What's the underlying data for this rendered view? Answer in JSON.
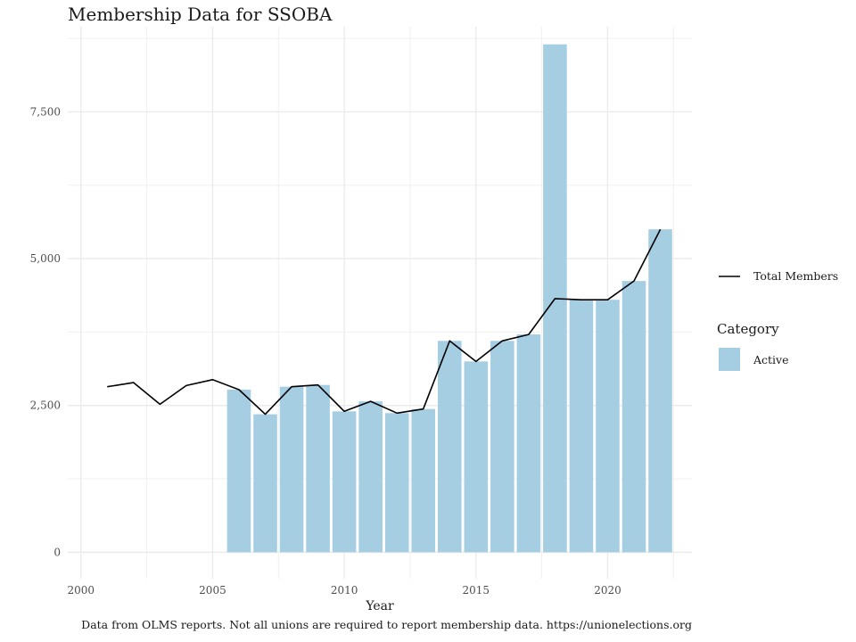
{
  "chart_data": {
    "type": "bar",
    "title": "Membership Data for SSOBA",
    "xlabel": "Year",
    "ylabel": "",
    "caption": "Data from OLMS reports. Not all unions are required to report membership data. https://unionelections.org",
    "xlim": [
      1999.5,
      2023.2
    ],
    "ylim": [
      -450,
      8950
    ],
    "x_ticks": [
      2000,
      2005,
      2010,
      2015,
      2020
    ],
    "x_tick_labels": [
      "2000",
      "2005",
      "2010",
      "2015",
      "2020"
    ],
    "y_ticks": [
      0,
      2500,
      5000,
      7500
    ],
    "y_tick_labels": [
      "0",
      "2,500",
      "5,000",
      "7,500"
    ],
    "grid": true,
    "bar_series": {
      "name": "Active",
      "color": "#a6cee3",
      "x": [
        2006,
        2007,
        2008,
        2009,
        2010,
        2011,
        2012,
        2013,
        2014,
        2015,
        2016,
        2017,
        2018,
        2019,
        2020,
        2021,
        2022
      ],
      "values": [
        2770,
        2350,
        2820,
        2850,
        2400,
        2570,
        2370,
        2440,
        3600,
        3250,
        3600,
        3710,
        8650,
        4300,
        4300,
        4620,
        5500
      ]
    },
    "line_series": {
      "name": "Total Members",
      "color": "#000000",
      "x": [
        2001,
        2002,
        2003,
        2004,
        2005,
        2006,
        2007,
        2008,
        2009,
        2010,
        2011,
        2012,
        2013,
        2014,
        2015,
        2016,
        2017,
        2018,
        2019,
        2020,
        2021,
        2022
      ],
      "values": [
        2820,
        2890,
        2520,
        2840,
        2940,
        2770,
        2350,
        2820,
        2850,
        2400,
        2570,
        2370,
        2440,
        3600,
        3250,
        3600,
        3710,
        4320,
        4300,
        4300,
        4620,
        5500
      ]
    },
    "legend": {
      "placement": "right",
      "line_label": "Total Members",
      "category_title": "Category",
      "category_label": "Active"
    }
  }
}
